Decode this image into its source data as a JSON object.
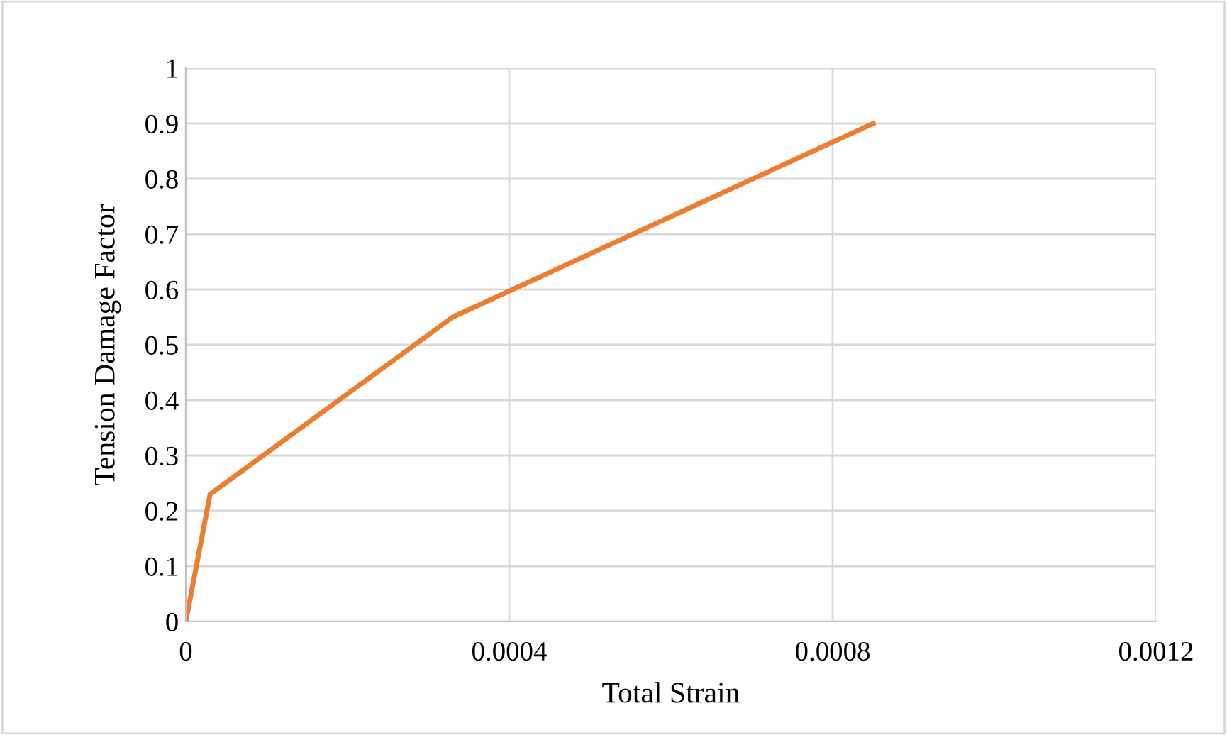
{
  "chart_data": {
    "type": "line",
    "xlabel": "Total Strain",
    "ylabel": "Tension Damage Factor",
    "x": [
      0,
      3e-05,
      0.00033,
      0.00085
    ],
    "series": [
      {
        "color": "#ed7d31",
        "values": [
          0,
          0.23,
          0.55,
          0.9
        ]
      }
    ],
    "xlim": [
      0,
      0.0012
    ],
    "xticks": [
      0,
      0.0004,
      0.0008,
      0.0012
    ],
    "ylim": [
      0,
      1
    ],
    "yticks": [
      0,
      0.1,
      0.2,
      0.3,
      0.4,
      0.5,
      0.6,
      0.7,
      0.8,
      0.9,
      1
    ],
    "grid": true,
    "marker": "none",
    "line_style": "solid"
  }
}
